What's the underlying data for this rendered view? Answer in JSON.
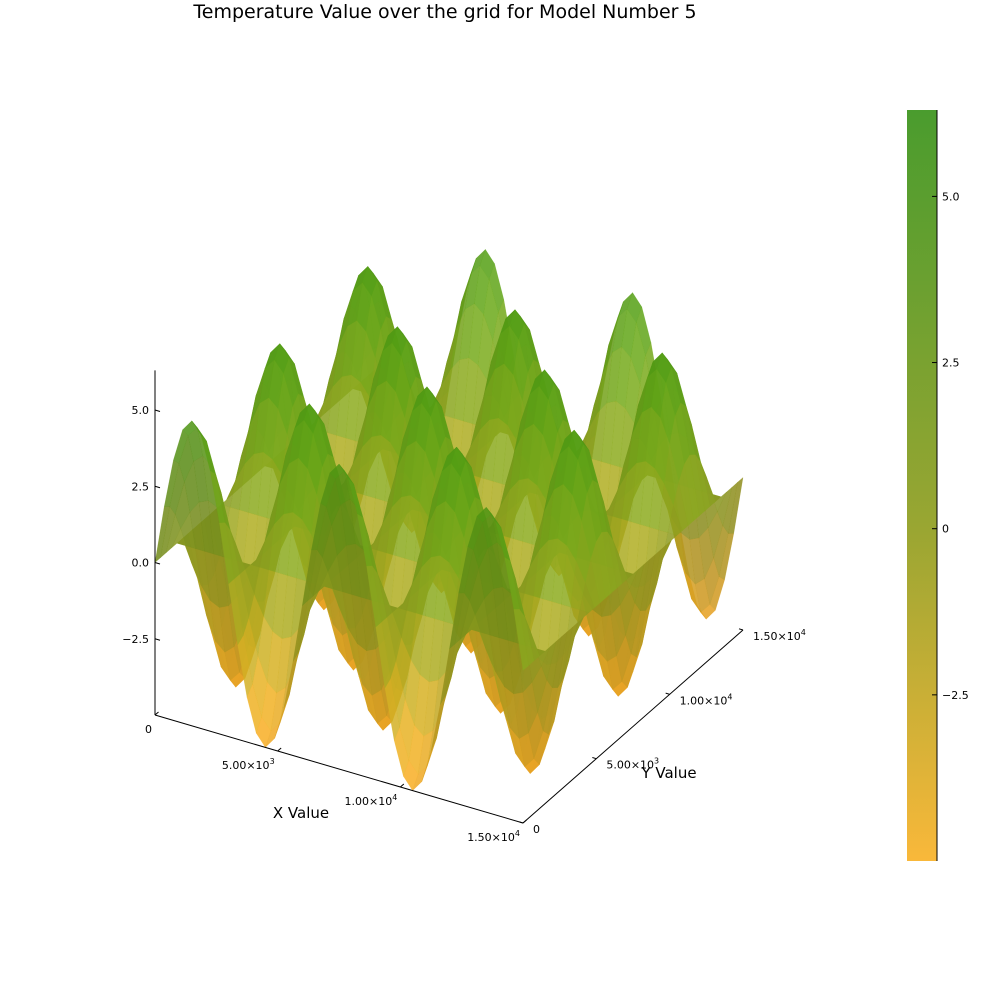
{
  "chart_data": {
    "type": "surface",
    "title": "Temperature Value over the grid for Model Number 5",
    "xlabel": "X Value",
    "ylabel": "Y Value",
    "zlabel": "",
    "xlim": [
      0,
      15000
    ],
    "ylim": [
      0,
      15000
    ],
    "zlim": [
      -5,
      6.3
    ],
    "x_ticks": [
      {
        "value": 0,
        "mant": "0",
        "exp": ""
      },
      {
        "value": 5000,
        "mant": "5.00×10",
        "exp": "3"
      },
      {
        "value": 10000,
        "mant": "1.00×10",
        "exp": "4"
      },
      {
        "value": 15000,
        "mant": "1.50×10",
        "exp": "4"
      }
    ],
    "y_ticks": [
      {
        "value": 0,
        "mant": "0",
        "exp": ""
      },
      {
        "value": 5000,
        "mant": "5.00×10",
        "exp": "3"
      },
      {
        "value": 10000,
        "mant": "1.00×10",
        "exp": "4"
      },
      {
        "value": 15000,
        "mant": "1.50×10",
        "exp": "4"
      }
    ],
    "z_ticks": [
      {
        "value": 5,
        "label": "5.0"
      },
      {
        "value": 2.5,
        "label": "2.5"
      },
      {
        "value": 0,
        "label": "0.0"
      },
      {
        "value": -2.5,
        "label": "−2.5"
      }
    ],
    "surface": {
      "function": "z = 5*sin(2*pi*x/6000)*cos(2*pi*y/6000)",
      "amplitude": 5,
      "wavelength_x": 6000,
      "wavelength_y": 6000,
      "grid_points": 41
    },
    "colorbar": {
      "range": [
        -5,
        6.3
      ],
      "ticks": [
        {
          "value": 5,
          "label": "5.0"
        },
        {
          "value": 2.5,
          "label": "2.5"
        },
        {
          "value": 0,
          "label": "0"
        },
        {
          "value": -2.5,
          "label": "−2.5"
        }
      ],
      "color_low": "#f7a823",
      "color_mid": "#8a9a1e",
      "color_high": "#3d9a10",
      "opacity": 0.85
    },
    "grid": false,
    "legend": "none"
  }
}
